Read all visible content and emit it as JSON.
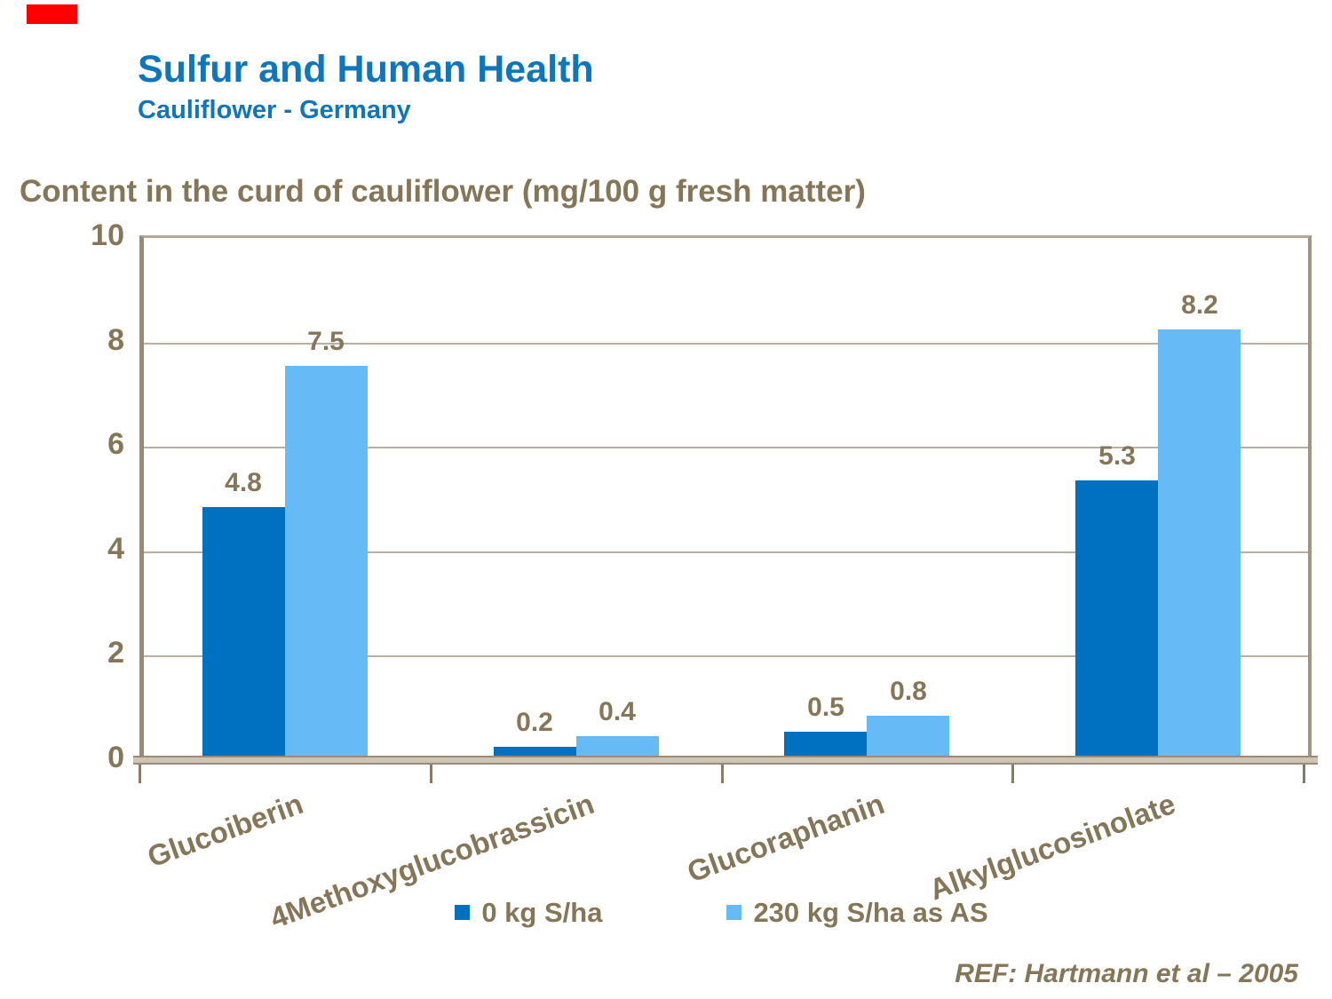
{
  "slide": {
    "accent_color": "#ff0000",
    "title": "Sulfur and Human Health",
    "subtitle": "Cauliflower - Germany",
    "title_color": "#0d76bd",
    "heading": "Content in the curd of cauliflower (mg/100 g fresh matter)",
    "text_color": "#867658",
    "ref": "REF: Hartmann et al – 2005"
  },
  "chart_data": {
    "type": "bar",
    "title": "Content in the curd of cauliflower (mg/100 g fresh matter)",
    "xlabel": "",
    "ylabel": "mg/100 g fresh matter",
    "categories": [
      "Glucoiberin",
      "4Methoxyglucobrassicin",
      "Glucoraphanin",
      "Alkylglucosinolate"
    ],
    "series": [
      {
        "name": "0 kg S/ha",
        "color": "#0070c0",
        "values": [
          4.8,
          0.2,
          0.5,
          5.3
        ]
      },
      {
        "name": "230 kg S/ha as AS",
        "color": "#66bbf7",
        "values": [
          7.5,
          0.4,
          0.8,
          8.2
        ]
      }
    ],
    "ylim": [
      0,
      10
    ],
    "yticks": [
      0,
      2,
      4,
      6,
      8,
      10
    ],
    "grid": true,
    "legend_position": "bottom",
    "data_labels": true
  }
}
